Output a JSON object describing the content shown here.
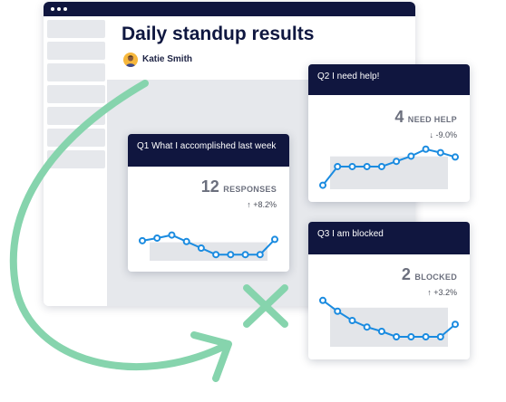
{
  "page": {
    "title": "Daily standup results",
    "user_name": "Katie Smith"
  },
  "cards": [
    {
      "question": "Q1 What I accomplished last week",
      "metric_value": "12",
      "metric_label": "RESPONSES",
      "change": "↑ +8.2%",
      "trend": [
        0.42,
        0.48,
        0.55,
        0.4,
        0.25,
        0.1,
        0.1,
        0.1,
        0.1,
        0.45
      ]
    },
    {
      "question": "Q2 I need help!",
      "metric_value": "4",
      "metric_label": "NEED HELP",
      "change": "↓ -9.0%",
      "trend": [
        0.05,
        0.48,
        0.48,
        0.48,
        0.48,
        0.6,
        0.72,
        0.88,
        0.8,
        0.7
      ]
    },
    {
      "question": "Q3 I am blocked",
      "metric_value": "2",
      "metric_label": "BLOCKED",
      "change": "↑ +3.2%",
      "trend": [
        0.82,
        0.62,
        0.45,
        0.33,
        0.25,
        0.15,
        0.15,
        0.15,
        0.15,
        0.38
      ]
    }
  ],
  "colors": {
    "navy": "#10163f",
    "line": "#1a8be0",
    "area": "#e3e5e9",
    "arrow": "#86d4ad"
  },
  "icons": [
    "avatar",
    "curved-arrow-icon",
    "close-x-icon"
  ]
}
